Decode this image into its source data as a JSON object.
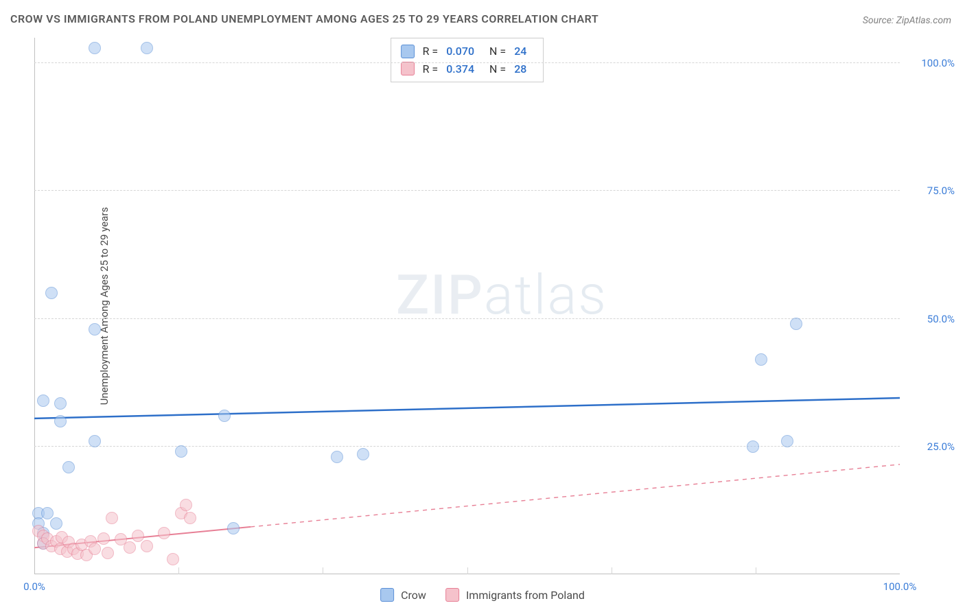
{
  "title": "CROW VS IMMIGRANTS FROM POLAND UNEMPLOYMENT AMONG AGES 25 TO 29 YEARS CORRELATION CHART",
  "source": "Source: ZipAtlas.com",
  "ylabel": "Unemployment Among Ages 25 to 29 years",
  "watermark_bold": "ZIP",
  "watermark_thin": "atlas",
  "chart": {
    "type": "scatter",
    "xlim": [
      0,
      100
    ],
    "ylim": [
      0,
      105
    ],
    "yticks": [
      {
        "v": 25,
        "label": "25.0%"
      },
      {
        "v": 50,
        "label": "50.0%"
      },
      {
        "v": 75,
        "label": "75.0%"
      },
      {
        "v": 100,
        "label": "100.0%"
      }
    ],
    "xticks": [
      {
        "v": 0,
        "label": "0.0%"
      },
      {
        "v": 100,
        "label": "100.0%"
      }
    ],
    "xgrid_minor": [
      16.67,
      33.33,
      50,
      66.67,
      83.33
    ],
    "background_color": "#ffffff",
    "grid_color": "#d5d5d5",
    "tick_color": "#3b7dd8",
    "axis_color": "#bfbfbf",
    "series": [
      {
        "name": "Crow",
        "marker_fill": "#a8c8ef",
        "marker_stroke": "#5a8fd6",
        "marker_size": 18,
        "line_color": "#2d6fc9",
        "line_width": 2.5,
        "line_dash": "solid",
        "trend": {
          "y_at_x0": 30.5,
          "y_at_x100": 34.5
        },
        "trend_x_extent": [
          0,
          100
        ],
        "R": "0.070",
        "N": "24",
        "points": [
          {
            "x": 7,
            "y": 103
          },
          {
            "x": 13,
            "y": 103
          },
          {
            "x": 2,
            "y": 55
          },
          {
            "x": 7,
            "y": 48
          },
          {
            "x": 88,
            "y": 49
          },
          {
            "x": 84,
            "y": 42
          },
          {
            "x": 1,
            "y": 34
          },
          {
            "x": 3,
            "y": 33.5
          },
          {
            "x": 3,
            "y": 30
          },
          {
            "x": 22,
            "y": 31
          },
          {
            "x": 7,
            "y": 26
          },
          {
            "x": 17,
            "y": 24
          },
          {
            "x": 35,
            "y": 23
          },
          {
            "x": 38,
            "y": 23.5
          },
          {
            "x": 83,
            "y": 25
          },
          {
            "x": 87,
            "y": 26
          },
          {
            "x": 4,
            "y": 21
          },
          {
            "x": 0.5,
            "y": 12
          },
          {
            "x": 1.5,
            "y": 12
          },
          {
            "x": 0.5,
            "y": 10
          },
          {
            "x": 2.5,
            "y": 10
          },
          {
            "x": 1,
            "y": 8
          },
          {
            "x": 23,
            "y": 9
          },
          {
            "x": 1,
            "y": 6
          }
        ]
      },
      {
        "name": "Immigrants from Poland",
        "marker_fill": "#f5c2cb",
        "marker_stroke": "#e77f95",
        "marker_size": 18,
        "line_color": "#e77f95",
        "line_width": 2,
        "line_dash": "dashed",
        "trend": {
          "y_at_x0": 5.2,
          "y_at_x100": 21.5
        },
        "trend_x_extent": [
          0,
          25
        ],
        "R": "0.374",
        "N": "28",
        "points": [
          {
            "x": 0.5,
            "y": 8.5
          },
          {
            "x": 1,
            "y": 7.5
          },
          {
            "x": 1,
            "y": 6
          },
          {
            "x": 1.5,
            "y": 7
          },
          {
            "x": 2,
            "y": 5.5
          },
          {
            "x": 2.5,
            "y": 6.5
          },
          {
            "x": 3,
            "y": 5
          },
          {
            "x": 3.2,
            "y": 7.2
          },
          {
            "x": 3.8,
            "y": 4.5
          },
          {
            "x": 4,
            "y": 6.3
          },
          {
            "x": 4.5,
            "y": 5
          },
          {
            "x": 5,
            "y": 4
          },
          {
            "x": 5.5,
            "y": 5.8
          },
          {
            "x": 6,
            "y": 3.8
          },
          {
            "x": 6.5,
            "y": 6.5
          },
          {
            "x": 7,
            "y": 5
          },
          {
            "x": 8,
            "y": 7
          },
          {
            "x": 8.5,
            "y": 4.2
          },
          {
            "x": 9,
            "y": 11
          },
          {
            "x": 10,
            "y": 6.8
          },
          {
            "x": 11,
            "y": 5.2
          },
          {
            "x": 12,
            "y": 7.5
          },
          {
            "x": 13,
            "y": 5.5
          },
          {
            "x": 15,
            "y": 8
          },
          {
            "x": 16,
            "y": 3
          },
          {
            "x": 17,
            "y": 12
          },
          {
            "x": 17.5,
            "y": 13.5
          },
          {
            "x": 18,
            "y": 11
          }
        ]
      }
    ]
  },
  "legend_top": [
    {
      "swatch": "blue",
      "R": "0.070",
      "N": "24"
    },
    {
      "swatch": "pink",
      "R": "0.374",
      "N": "28"
    }
  ],
  "legend_bottom": [
    {
      "swatch": "blue",
      "label": "Crow"
    },
    {
      "swatch": "pink",
      "label": "Immigrants from Poland"
    }
  ],
  "label_R": "R =",
  "label_N": "N ="
}
